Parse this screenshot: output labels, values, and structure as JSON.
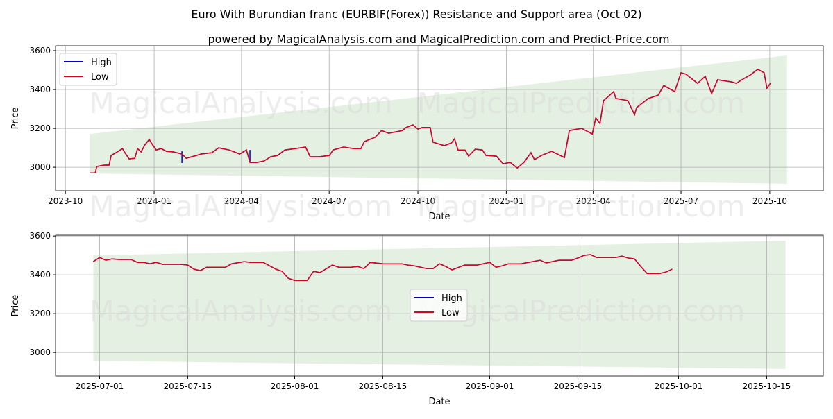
{
  "title": "Euro With Burundian franc (EURBIF(Forex)) Resistance and Support area (Oct 02)",
  "subtitle": "powered by MagicalAnalysis.com and MagicalPrediction.com and Predict-Price.com",
  "watermarks": [
    "MagicalAnalysis.com",
    "MagicalPrediction.com"
  ],
  "colors": {
    "high": "#0000cc",
    "low": "#e0001b",
    "band": "#d8ead6"
  },
  "chart_data": [
    {
      "type": "line",
      "xtype": "decimal-year",
      "xlabel": "Date",
      "ylabel": "Price",
      "xlim": [
        2023.72,
        2025.9
      ],
      "ylim": [
        2879,
        3625
      ],
      "grid": true,
      "legend": {
        "placement": "top-left",
        "entries": [
          "High",
          "Low"
        ]
      },
      "xticks": [
        {
          "t": 2023.748,
          "label": "2023-10"
        },
        {
          "t": 2024.0,
          "label": "2024-01"
        },
        {
          "t": 2024.248,
          "label": "2024-04"
        },
        {
          "t": 2024.497,
          "label": "2024-07"
        },
        {
          "t": 2024.749,
          "label": "2024-10"
        },
        {
          "t": 2025.0,
          "label": "2025-01"
        },
        {
          "t": 2025.247,
          "label": "2025-04"
        },
        {
          "t": 2025.496,
          "label": "2025-07"
        },
        {
          "t": 2025.748,
          "label": "2025-10"
        }
      ],
      "yticks": [
        3000,
        3200,
        3400,
        3600
      ],
      "band": {
        "x": [
          2023.817,
          2025.797
        ],
        "upper": [
          3171,
          3575
        ],
        "lower": [
          2968,
          2915
        ]
      },
      "high_spikes": [
        [
          2024.079,
          3082
        ],
        [
          2024.272,
          3089
        ]
      ],
      "series": [
        {
          "name": "Low",
          "x": [
            2023.817,
            2023.833,
            2023.837,
            2023.858,
            2023.872,
            2023.878,
            2023.888,
            2023.898,
            2023.91,
            2023.917,
            2023.929,
            2023.945,
            2023.953,
            2023.963,
            2023.973,
            2023.986,
            2023.992,
            2024.006,
            2024.02,
            2024.035,
            2024.055,
            2024.079,
            2024.091,
            2024.107,
            2024.134,
            2024.164,
            2024.183,
            2024.213,
            2024.243,
            2024.262,
            2024.272,
            2024.292,
            2024.312,
            2024.331,
            2024.351,
            2024.371,
            2024.4,
            2024.43,
            2024.443,
            2024.469,
            2024.498,
            2024.508,
            2024.538,
            2024.567,
            2024.587,
            2024.597,
            2024.627,
            2024.646,
            2024.666,
            2024.686,
            2024.705,
            2024.715,
            2024.735,
            2024.749,
            2024.761,
            2024.784,
            2024.792,
            2024.824,
            2024.844,
            2024.853,
            2024.863,
            2024.883,
            2024.893,
            2024.912,
            2024.932,
            2024.942,
            2024.972,
            2024.991,
            2025.011,
            2025.031,
            2025.05,
            2025.07,
            2025.08,
            2025.1,
            2025.129,
            2025.165,
            2025.179,
            2025.214,
            2025.244,
            2025.254,
            2025.266,
            2025.276,
            2025.305,
            2025.311,
            2025.345,
            2025.364,
            2025.37,
            2025.403,
            2025.431,
            2025.447,
            2025.478,
            2025.496,
            2025.51,
            2025.543,
            2025.565,
            2025.583,
            2025.6,
            2025.64,
            2025.653,
            2025.675,
            2025.693,
            2025.714,
            2025.732,
            2025.74,
            2025.75
          ],
          "y": [
            2971,
            2971,
            3004,
            3011,
            3011,
            3061,
            3071,
            3082,
            3096,
            3075,
            3043,
            3046,
            3096,
            3079,
            3114,
            3143,
            3125,
            3089,
            3096,
            3082,
            3079,
            3068,
            3046,
            3054,
            3068,
            3075,
            3100,
            3089,
            3068,
            3089,
            3025,
            3025,
            3032,
            3054,
            3061,
            3089,
            3096,
            3104,
            3054,
            3054,
            3061,
            3089,
            3104,
            3096,
            3096,
            3132,
            3154,
            3189,
            3175,
            3182,
            3189,
            3204,
            3218,
            3196,
            3204,
            3204,
            3129,
            3111,
            3125,
            3146,
            3089,
            3089,
            3057,
            3093,
            3089,
            3061,
            3057,
            3018,
            3025,
            2996,
            3025,
            3075,
            3039,
            3061,
            3082,
            3050,
            3189,
            3200,
            3171,
            3254,
            3225,
            3343,
            3389,
            3354,
            3343,
            3271,
            3307,
            3354,
            3371,
            3421,
            3389,
            3486,
            3479,
            3432,
            3468,
            3379,
            3450,
            3439,
            3432,
            3457,
            3475,
            3504,
            3486,
            3407,
            3432
          ]
        }
      ]
    },
    {
      "type": "line",
      "xtype": "date",
      "xlabel": "Date",
      "ylabel": "Price",
      "xlim": [
        "2025-06-24",
        "2025-10-24"
      ],
      "ylim": [
        2879,
        3604
      ],
      "grid": true,
      "legend": {
        "placement": "center",
        "entries": [
          "High",
          "Low"
        ]
      },
      "xticks": [
        "2025-07-01",
        "2025-07-15",
        "2025-08-01",
        "2025-08-15",
        "2025-09-01",
        "2025-09-15",
        "2025-10-01",
        "2025-10-15"
      ],
      "yticks": [
        3000,
        3200,
        3400,
        3600
      ],
      "band": {
        "x": [
          "2025-06-30",
          "2025-10-18"
        ],
        "upper": [
          3500,
          3575
        ],
        "lower": [
          2957,
          2915
        ]
      },
      "series": [
        {
          "name": "Low",
          "x": [
            "2025-06-30",
            "2025-07-01",
            "2025-07-02",
            "2025-07-03",
            "2025-07-04",
            "2025-07-06",
            "2025-07-07",
            "2025-07-08",
            "2025-07-09",
            "2025-07-10",
            "2025-07-11",
            "2025-07-14",
            "2025-07-15",
            "2025-07-16",
            "2025-07-17",
            "2025-07-18",
            "2025-07-21",
            "2025-07-22",
            "2025-07-24",
            "2025-07-25",
            "2025-07-27",
            "2025-07-29",
            "2025-07-30",
            "2025-07-31",
            "2025-08-01",
            "2025-08-03",
            "2025-08-04",
            "2025-08-05",
            "2025-08-07",
            "2025-08-08",
            "2025-08-10",
            "2025-08-11",
            "2025-08-12",
            "2025-08-13",
            "2025-08-15",
            "2025-08-18",
            "2025-08-19",
            "2025-08-20",
            "2025-08-22",
            "2025-08-23",
            "2025-08-24",
            "2025-08-25",
            "2025-08-26",
            "2025-08-28",
            "2025-08-30",
            "2025-09-01",
            "2025-09-02",
            "2025-09-03",
            "2025-09-04",
            "2025-09-06",
            "2025-09-09",
            "2025-09-10",
            "2025-09-12",
            "2025-09-14",
            "2025-09-15",
            "2025-09-16",
            "2025-09-17",
            "2025-09-18",
            "2025-09-21",
            "2025-09-22",
            "2025-09-23",
            "2025-09-24",
            "2025-09-25",
            "2025-09-26",
            "2025-09-28",
            "2025-09-29",
            "2025-09-30"
          ],
          "y": [
            3468,
            3489,
            3475,
            3482,
            3479,
            3479,
            3464,
            3464,
            3457,
            3464,
            3454,
            3454,
            3450,
            3429,
            3421,
            3439,
            3439,
            3457,
            3468,
            3464,
            3464,
            3429,
            3418,
            3382,
            3371,
            3371,
            3418,
            3411,
            3450,
            3439,
            3439,
            3443,
            3432,
            3464,
            3457,
            3457,
            3450,
            3446,
            3432,
            3432,
            3457,
            3443,
            3425,
            3450,
            3450,
            3464,
            3439,
            3446,
            3457,
            3457,
            3475,
            3461,
            3475,
            3475,
            3486,
            3500,
            3504,
            3489,
            3489,
            3496,
            3486,
            3482,
            3443,
            3407,
            3407,
            3414,
            3429
          ]
        }
      ]
    }
  ]
}
